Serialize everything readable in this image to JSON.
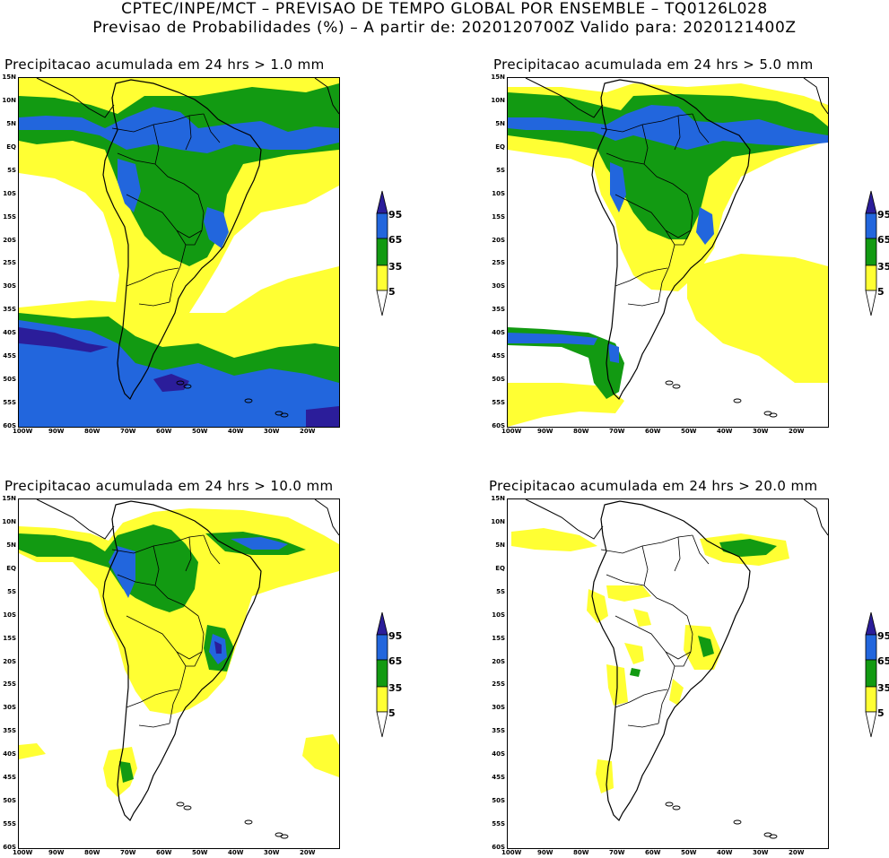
{
  "header": {
    "line1": "CPTEC/INPE/MCT – PREVISAO DE TEMPO GLOBAL POR ENSEMBLE – TQ0126L028",
    "line2": "Previsao de Probabilidades (%) –   A partir de: 2020120700Z  Valido para: 2020121400Z"
  },
  "axes": {
    "lat_labels": [
      "15N",
      "10N",
      "5N",
      "EQ",
      "5S",
      "10S",
      "15S",
      "20S",
      "25S",
      "30S",
      "35S",
      "40S",
      "45S",
      "50S",
      "55S",
      "60S"
    ],
    "lon_labels": [
      "100W",
      "90W",
      "80W",
      "70W",
      "60W",
      "50W",
      "40W",
      "30W",
      "20W"
    ]
  },
  "colorbar": {
    "labels": [
      "95",
      "65",
      "35",
      "5"
    ],
    "colors": [
      "#2b1d9a",
      "#2266dd",
      "#129a12",
      "#ffff33",
      "#ffffff"
    ]
  },
  "panels": [
    {
      "id": "p1",
      "title": "Precipitacao acumulada em 24 hrs > 1.0 mm"
    },
    {
      "id": "p2",
      "title": "Precipitacao acumulada em 24 hrs > 5.0 mm"
    },
    {
      "id": "p3",
      "title": "Precipitacao acumulada em 24 hrs > 10.0 mm"
    },
    {
      "id": "p4",
      "title": "Precipitacao acumulada em 24 hrs > 20.0 mm"
    }
  ]
}
